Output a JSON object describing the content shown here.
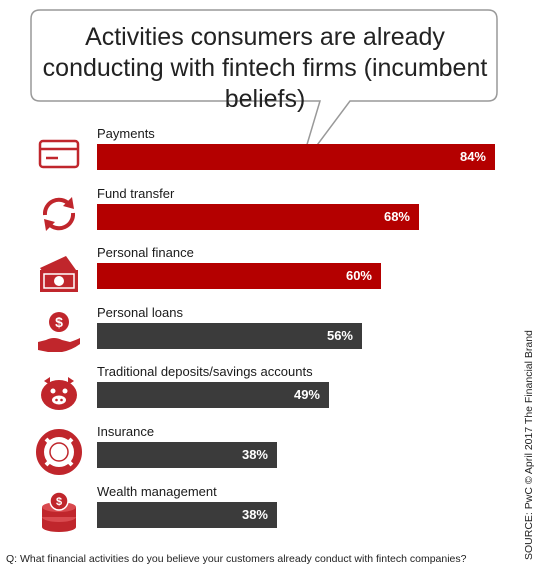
{
  "title": "Activities consumers are already conducting with fintech firms (incumbent beliefs)",
  "source": "SOURCE: PwC © April 2017 The Financial Brand",
  "question": "Q: What financial activities do you believe your customers already conduct with fintech companies?",
  "colors": {
    "red": "#b40000",
    "dark": "#3b3b3b",
    "bubble_border": "#999999"
  },
  "chart_data": {
    "type": "bar",
    "orientation": "horizontal",
    "title": "Activities consumers are already conducting with fintech firms (incumbent beliefs)",
    "categories": [
      "Payments",
      "Fund transfer",
      "Personal finance",
      "Personal loans",
      "Traditional deposits/savings accounts",
      "Insurance",
      "Wealth management"
    ],
    "values": [
      84,
      68,
      60,
      56,
      49,
      38,
      38
    ],
    "value_labels": [
      "84%",
      "68%",
      "60%",
      "56%",
      "49%",
      "38%",
      "38%"
    ],
    "bar_colors": [
      "red",
      "red",
      "red",
      "dark",
      "dark",
      "dark",
      "dark"
    ],
    "icons": [
      "credit-card-icon",
      "refresh-arrows-icon",
      "banknote-icon",
      "hand-coin-icon",
      "piggy-bank-icon",
      "lifebuoy-icon",
      "coin-stack-icon"
    ],
    "xlim": [
      0,
      100
    ],
    "grid": false,
    "legend": "none"
  }
}
